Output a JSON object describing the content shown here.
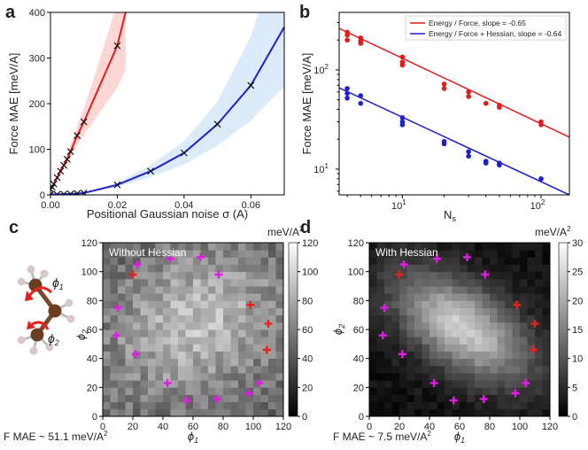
{
  "chart_data": [
    {
      "id": "a",
      "panel_label": "a",
      "type": "line",
      "xlabel": "Positional Gaussian noise σ (A)",
      "ylabel": "Force MAE [meV/A]",
      "xlim": [
        0,
        0.07
      ],
      "ylim": [
        0,
        400
      ],
      "xticks": [
        "0.00",
        "0.02",
        "0.04",
        "0.06"
      ],
      "yticks": [
        "0",
        "100",
        "200",
        "300",
        "400"
      ],
      "series": [
        {
          "name": "Energy / Force",
          "color": "#e41a1c",
          "band_color": "#fbd0cc",
          "x": [
            0,
            0.0005,
            0.001,
            0.002,
            0.003,
            0.004,
            0.005,
            0.006,
            0.008,
            0.01,
            0.02
          ],
          "y": [
            12,
            17,
            24,
            38,
            52,
            65,
            78,
            95,
            130,
            160,
            327
          ],
          "band_rel_lo": [
            0.9,
            0.9,
            0.9,
            0.88,
            0.88,
            0.87,
            0.86,
            0.85,
            0.84,
            0.82,
            0.72
          ],
          "band_rel_hi": [
            1.1,
            1.1,
            1.1,
            1.12,
            1.12,
            1.13,
            1.14,
            1.15,
            1.16,
            1.18,
            1.28
          ],
          "curve_x": [
            0.01,
            0.0225
          ],
          "curve_y": [
            160,
            400
          ]
        },
        {
          "name": "Energy / Force + Hessian",
          "color": "#1f1fd0",
          "band_color": "#d5e8f8",
          "x": [
            0,
            0.002,
            0.004,
            0.006,
            0.008,
            0.01,
            0.02,
            0.03,
            0.04,
            0.05,
            0.06
          ],
          "y": [
            1,
            1,
            1.5,
            2,
            3,
            4,
            22,
            52,
            92,
            155,
            240
          ],
          "band_rel_lo": [
            0.8,
            0.8,
            0.8,
            0.8,
            0.8,
            0.8,
            0.78,
            0.75,
            0.72,
            0.7,
            0.68
          ],
          "band_rel_hi": [
            1.2,
            1.2,
            1.2,
            1.2,
            1.2,
            1.2,
            1.22,
            1.25,
            1.28,
            1.32,
            1.45
          ],
          "curve_x": [
            0.06,
            0.07
          ],
          "curve_y": [
            240,
            368
          ]
        }
      ]
    },
    {
      "id": "b",
      "panel_label": "b",
      "type": "scatter",
      "xscale": "log",
      "yscale": "log",
      "xlabel": "N",
      "xlabel_sub": "s",
      "ylabel": "Force MAE [meV/A]",
      "xlim": [
        3.5,
        160
      ],
      "ylim": [
        5.5,
        380
      ],
      "xticks": [
        {
          "v": 10,
          "base": "10",
          "exp": "1"
        },
        {
          "v": 100,
          "base": "10",
          "exp": "2"
        }
      ],
      "yticks": [
        {
          "v": 10,
          "base": "10",
          "exp": "1"
        },
        {
          "v": 100,
          "base": "10",
          "exp": "2"
        }
      ],
      "legend_position": "top-right",
      "series": [
        {
          "name": "Energy / Force, slope = -0.65",
          "color": "#e41a1c",
          "fit": {
            "x": [
              3.5,
              160
            ],
            "y": [
              262,
              21
            ]
          },
          "points": [
            [
              4,
              240
            ],
            [
              4,
              225
            ],
            [
              4,
              200
            ],
            [
              5,
              210
            ],
            [
              5,
              195
            ],
            [
              5,
              185
            ],
            [
              10,
              135
            ],
            [
              10,
              120
            ],
            [
              10,
              112
            ],
            [
              20,
              72
            ],
            [
              20,
              65
            ],
            [
              30,
              60
            ],
            [
              30,
              54
            ],
            [
              40,
              46
            ],
            [
              50,
              44
            ],
            [
              50,
              42
            ],
            [
              100,
              30
            ],
            [
              100,
              28
            ]
          ]
        },
        {
          "name": "Energy / Force + Hessian, slope = -0.64",
          "color": "#1f1fd0",
          "fit": {
            "x": [
              3.5,
              160
            ],
            "y": [
              66,
              5.5
            ]
          },
          "points": [
            [
              4,
              65
            ],
            [
              4,
              58
            ],
            [
              4,
              52
            ],
            [
              5,
              55
            ],
            [
              5,
              46
            ],
            [
              10,
              33
            ],
            [
              10,
              30
            ],
            [
              10,
              28
            ],
            [
              20,
              19
            ],
            [
              20,
              18
            ],
            [
              30,
              15
            ],
            [
              30,
              13.5
            ],
            [
              40,
              12
            ],
            [
              40,
              11.5
            ],
            [
              50,
              11.5
            ],
            [
              50,
              11
            ],
            [
              100,
              8
            ]
          ]
        }
      ]
    },
    {
      "id": "c",
      "panel_label": "c",
      "type": "heatmap",
      "title": "Without Hessian",
      "xlabel": "ϕ",
      "xlabel_sub": "1",
      "ylabel": "ϕ",
      "ylabel_sub": "2",
      "xlim": [
        0,
        120
      ],
      "ylim": [
        0,
        120
      ],
      "xticks": [
        "0",
        "20",
        "40",
        "60",
        "80",
        "100",
        "120"
      ],
      "yticks": [
        "0",
        "20",
        "40",
        "60",
        "80",
        "100",
        "120"
      ],
      "grid_n": 24,
      "colorbar": {
        "label": "meV/A",
        "label_sup": "2",
        "min": 0,
        "max": 120,
        "ticks": [
          "0",
          "20",
          "40",
          "60",
          "80",
          "100",
          "120"
        ]
      },
      "field": {
        "base": 45,
        "amp": 45,
        "cx": 62,
        "cy": 65,
        "sx": 40,
        "sy": 36,
        "rho": 0.2,
        "noise": 30,
        "seed": 7
      },
      "note": "F MAE ~ 51.1 meV/A",
      "note_sup": "2"
    },
    {
      "id": "d",
      "panel_label": "d",
      "type": "heatmap",
      "title": "With Hessian",
      "xlabel": "ϕ",
      "xlabel_sub": "1",
      "ylabel": "ϕ",
      "ylabel_sub": "2",
      "xlim": [
        0,
        120
      ],
      "ylim": [
        0,
        120
      ],
      "xticks": [
        "0",
        "20",
        "40",
        "60",
        "80",
        "100",
        "120"
      ],
      "yticks": [
        "0",
        "20",
        "40",
        "60",
        "80",
        "100",
        "120"
      ],
      "grid_n": 24,
      "colorbar": {
        "label": "meV/A",
        "label_sup": "2",
        "min": 0,
        "max": 30,
        "ticks": [
          "0",
          "5",
          "10",
          "15",
          "20",
          "25",
          "30"
        ]
      },
      "field": {
        "base": 2,
        "amp": 22,
        "cx": 62,
        "cy": 62,
        "sx": 26,
        "sy": 22,
        "rho": -0.55,
        "noise": 3,
        "seed": 11
      },
      "note": "F MAE ~ 7.5 meV/A",
      "note_sup": "2"
    }
  ],
  "markers": {
    "red": {
      "color": "#e8211d",
      "points": [
        [
          20,
          98
        ],
        [
          98,
          77
        ],
        [
          110,
          64
        ],
        [
          109,
          46
        ]
      ]
    },
    "magenta": {
      "color": "#e21be8",
      "points": [
        [
          23,
          105
        ],
        [
          45,
          109
        ],
        [
          65,
          110
        ],
        [
          77,
          98
        ],
        [
          10,
          75
        ],
        [
          9,
          56
        ],
        [
          22,
          43
        ],
        [
          43,
          23
        ],
        [
          56,
          11
        ],
        [
          76,
          12
        ],
        [
          97,
          16
        ],
        [
          104,
          23
        ]
      ]
    }
  },
  "molecule": {
    "angle_labels": [
      "ϕ",
      "ϕ"
    ],
    "angle_subs": [
      "1",
      "2"
    ]
  }
}
